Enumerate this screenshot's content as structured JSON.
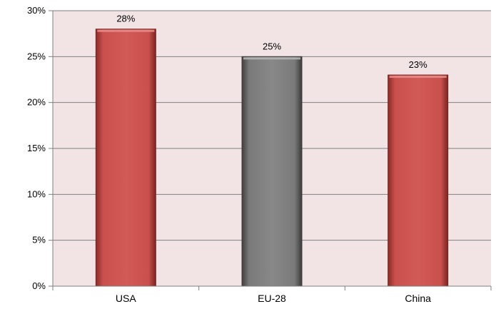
{
  "chart_data": {
    "type": "bar",
    "categories": [
      "USA",
      "EU-28",
      "China"
    ],
    "values": [
      28,
      25,
      23
    ],
    "data_labels": [
      "28%",
      "25%",
      "23%"
    ],
    "bar_colors": [
      "#c9504d",
      "#7f7f7f",
      "#c9504d"
    ],
    "ylim": [
      0,
      30
    ],
    "y_ticks": [
      0,
      5,
      10,
      15,
      20,
      25,
      30
    ],
    "y_tick_labels": [
      "0%",
      "5%",
      "10%",
      "15%",
      "20%",
      "25%",
      "30%"
    ],
    "title": "",
    "xlabel": "",
    "ylabel": "",
    "grid": true,
    "legend": "none",
    "plot_background": "#f2e4e4",
    "gridline_color": "#7f7f7f"
  }
}
